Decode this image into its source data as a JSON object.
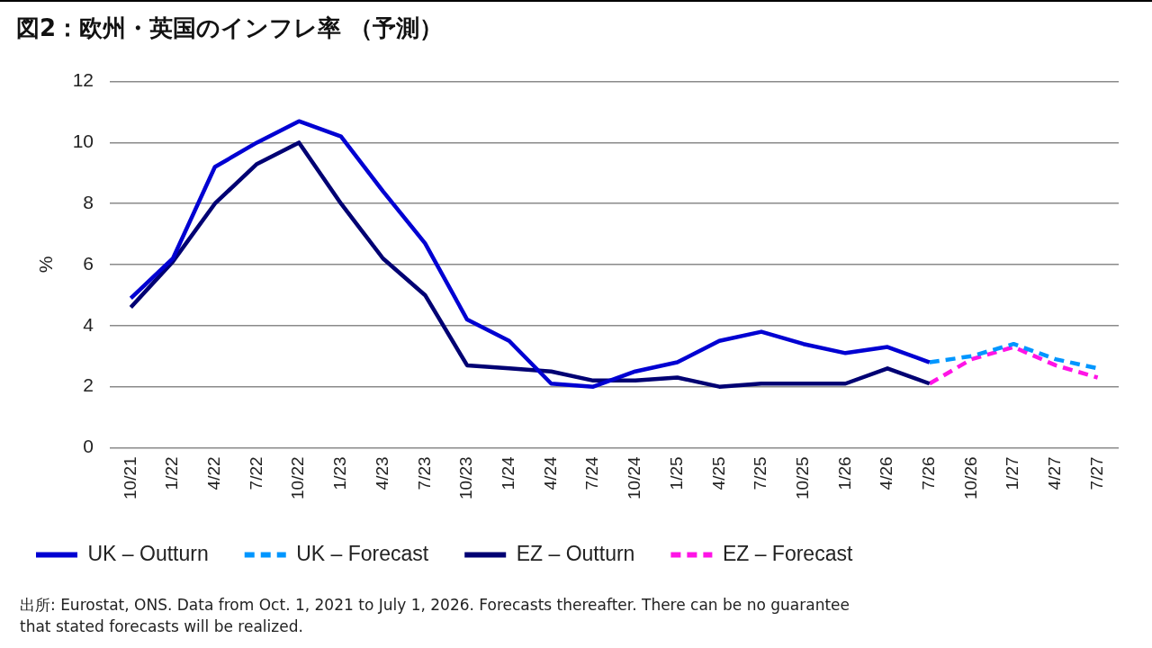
{
  "chart_data": {
    "type": "line",
    "title": "図2：欧州・英国のインフレ率 （予測）",
    "ylabel": "%",
    "categories": [
      "10/21",
      "1/22",
      "4/22",
      "7/22",
      "10/22",
      "1/23",
      "4/23",
      "7/23",
      "10/23",
      "1/24",
      "4/24",
      "7/24",
      "10/24",
      "1/25",
      "4/25",
      "7/25",
      "10/25",
      "1/26",
      "4/26",
      "7/26",
      "10/26",
      "1/27",
      "4/27",
      "7/27"
    ],
    "series": [
      {
        "name": "UK – Outturn",
        "color": "#0000d2",
        "line_style": "solid",
        "values": [
          4.9,
          6.2,
          9.2,
          10.0,
          10.7,
          10.2,
          8.4,
          6.7,
          4.2,
          3.5,
          2.1,
          2.0,
          2.5,
          2.8,
          3.5,
          3.8,
          3.4,
          3.1,
          3.3,
          2.8,
          null,
          null,
          null,
          null
        ]
      },
      {
        "name": "UK – Forecast",
        "color": "#0096ff",
        "line_style": "dashed",
        "values": [
          null,
          null,
          null,
          null,
          null,
          null,
          null,
          null,
          null,
          null,
          null,
          null,
          null,
          null,
          null,
          null,
          null,
          null,
          null,
          2.8,
          3.0,
          3.4,
          2.9,
          2.6
        ]
      },
      {
        "name": "EZ – Outturn",
        "color": "#000073",
        "line_style": "solid",
        "values": [
          4.6,
          6.1,
          8.0,
          9.3,
          10.0,
          8.0,
          6.2,
          5.0,
          2.7,
          2.6,
          2.5,
          2.2,
          2.2,
          2.3,
          2.0,
          2.1,
          2.1,
          2.1,
          2.6,
          2.1,
          null,
          null,
          null,
          null
        ]
      },
      {
        "name": "EZ – Forecast",
        "color": "#ff14e6",
        "line_style": "dashed",
        "values": [
          null,
          null,
          null,
          null,
          null,
          null,
          null,
          null,
          null,
          null,
          null,
          null,
          null,
          null,
          null,
          null,
          null,
          null,
          null,
          2.1,
          2.9,
          3.3,
          2.7,
          2.3
        ]
      }
    ],
    "ylim": [
      0,
      12
    ],
    "yticks": [
      0,
      2,
      4,
      6,
      8,
      10,
      12
    ],
    "grid": "y",
    "legend": "bottom left",
    "annotations": [
      "出所: Eurostat, ONS. Data from Oct. 1, 2021 to July 1, 2026. Forecasts thereafter. There can be no guarantee that stated forecasts will be realized."
    ]
  }
}
